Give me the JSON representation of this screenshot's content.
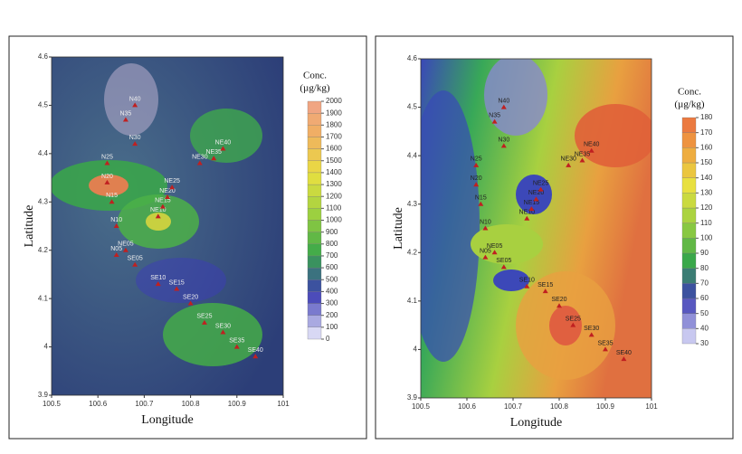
{
  "panels": [
    {
      "x_label": "Longitude",
      "y_label": "Latitude",
      "xlim": [
        100.5,
        101
      ],
      "xticks": [
        100.5,
        100.6,
        100.7,
        100.8,
        100.9,
        101
      ],
      "ylim": [
        3.9,
        4.6
      ],
      "yticks": [
        3.9,
        4,
        4.1,
        4.2,
        4.3,
        4.4,
        4.5,
        4.6
      ],
      "colorbar": {
        "title": "Conc.",
        "unit": "(µg/kg)",
        "ticks": [
          0,
          100,
          200,
          300,
          400,
          500,
          600,
          700,
          800,
          900,
          1000,
          1100,
          1200,
          1300,
          1400,
          1500,
          1600,
          1700,
          1800,
          1900,
          2000
        ],
        "colors": [
          "#d8d8f4",
          "#3c3cb4",
          "#3aa84a",
          "#9cd040",
          "#e8e040",
          "#f0b060",
          "#f0a090"
        ]
      }
    },
    {
      "x_label": "Longitude",
      "y_label": "Latitude",
      "xlim": [
        100.5,
        101
      ],
      "xticks": [
        100.5,
        100.6,
        100.7,
        100.8,
        100.9,
        101
      ],
      "ylim": [
        3.9,
        4.6
      ],
      "yticks": [
        3.9,
        4,
        4.1,
        4.2,
        4.3,
        4.4,
        4.5,
        4.6
      ],
      "colorbar": {
        "title": "Conc.",
        "unit": "(µg/kg)",
        "ticks": [
          30,
          40,
          50,
          60,
          70,
          80,
          90,
          100,
          110,
          120,
          130,
          140,
          150,
          160,
          170,
          180
        ],
        "colors": [
          "#c8c8f0",
          "#3c3cb4",
          "#3aa84a",
          "#9cd040",
          "#e8e040",
          "#f0a040",
          "#e86040"
        ]
      }
    }
  ],
  "stations": [
    {
      "name": "N40",
      "x": 100.68,
      "y": 4.5
    },
    {
      "name": "N35",
      "x": 100.66,
      "y": 4.47
    },
    {
      "name": "N30",
      "x": 100.68,
      "y": 4.42
    },
    {
      "name": "N25",
      "x": 100.62,
      "y": 4.38
    },
    {
      "name": "N20",
      "x": 100.62,
      "y": 4.34
    },
    {
      "name": "N15",
      "x": 100.63,
      "y": 4.3
    },
    {
      "name": "N10",
      "x": 100.64,
      "y": 4.25
    },
    {
      "name": "N05",
      "x": 100.64,
      "y": 4.19
    },
    {
      "name": "NE05",
      "x": 100.66,
      "y": 4.2
    },
    {
      "name": "SE05",
      "x": 100.68,
      "y": 4.17
    },
    {
      "name": "NE10",
      "x": 100.73,
      "y": 4.27
    },
    {
      "name": "NE15",
      "x": 100.74,
      "y": 4.29
    },
    {
      "name": "NE20",
      "x": 100.75,
      "y": 4.31
    },
    {
      "name": "NE25",
      "x": 100.76,
      "y": 4.33
    },
    {
      "name": "NE30",
      "x": 100.82,
      "y": 4.38
    },
    {
      "name": "NE35",
      "x": 100.85,
      "y": 4.39
    },
    {
      "name": "NE40",
      "x": 100.87,
      "y": 4.41
    },
    {
      "name": "SE10",
      "x": 100.73,
      "y": 4.13
    },
    {
      "name": "SE15",
      "x": 100.77,
      "y": 4.12
    },
    {
      "name": "SE20",
      "x": 100.8,
      "y": 4.09
    },
    {
      "name": "SE25",
      "x": 100.83,
      "y": 4.05
    },
    {
      "name": "SE30",
      "x": 100.87,
      "y": 4.03
    },
    {
      "name": "SE35",
      "x": 100.9,
      "y": 4
    },
    {
      "name": "SE40",
      "x": 100.94,
      "y": 3.98
    }
  ]
}
